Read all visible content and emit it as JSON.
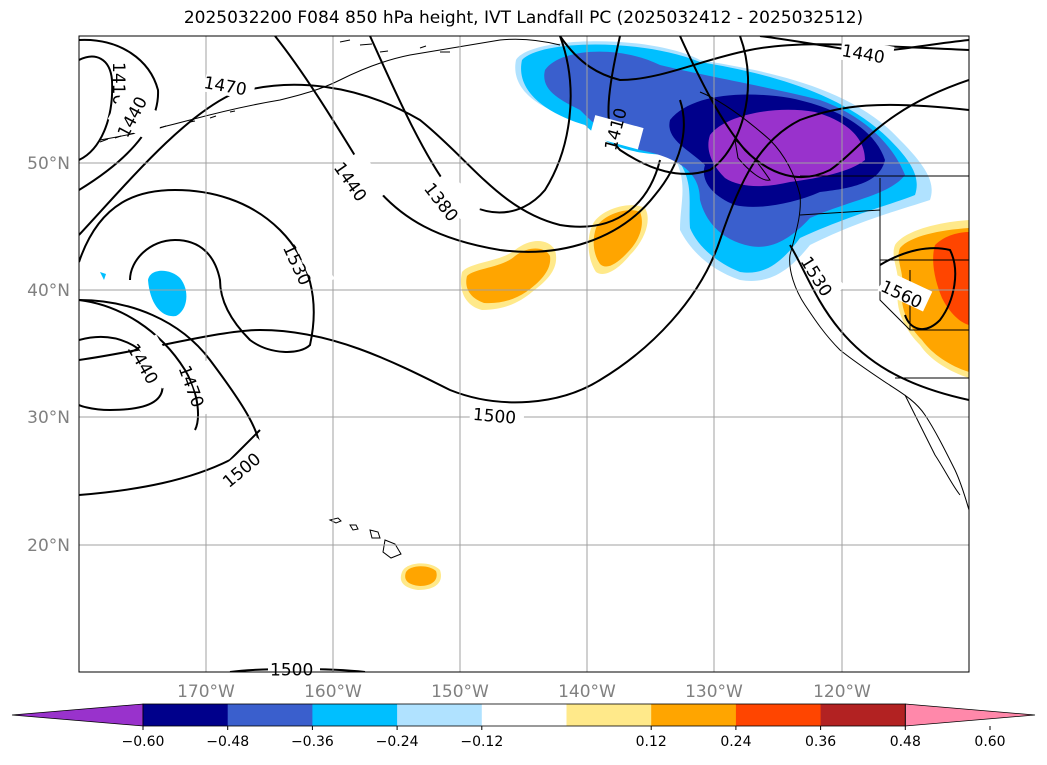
{
  "title": "2025032200 F084 850 hPa height, IVT Landfall PC (2025032412 - 2025032512)",
  "map": {
    "lat_labels": [
      "50°N",
      "40°N",
      "30°N",
      "20°N"
    ],
    "lon_labels": [
      "170°W",
      "160°W",
      "150°W",
      "140°W",
      "130°W",
      "120°W"
    ],
    "contour_labels": [
      "1410",
      "1440",
      "1470",
      "1440",
      "1380",
      "1530",
      "1410",
      "1440",
      "1530",
      "1560",
      "1440",
      "1470",
      "1500",
      "1500",
      "1500"
    ]
  },
  "colorbar": {
    "ticks": [
      "−0.60",
      "−0.48",
      "−0.36",
      "−0.24",
      "−0.12",
      "0.12",
      "0.24",
      "0.36",
      "0.48",
      "0.60"
    ],
    "colors": [
      "#9932cc",
      "#00008b",
      "#3a5fcd",
      "#00bfff",
      "#b0e2ff",
      "#ffffff",
      "#ffe98a",
      "#ffa500",
      "#ff4500",
      "#b22222",
      "#ff88aa"
    ]
  }
}
